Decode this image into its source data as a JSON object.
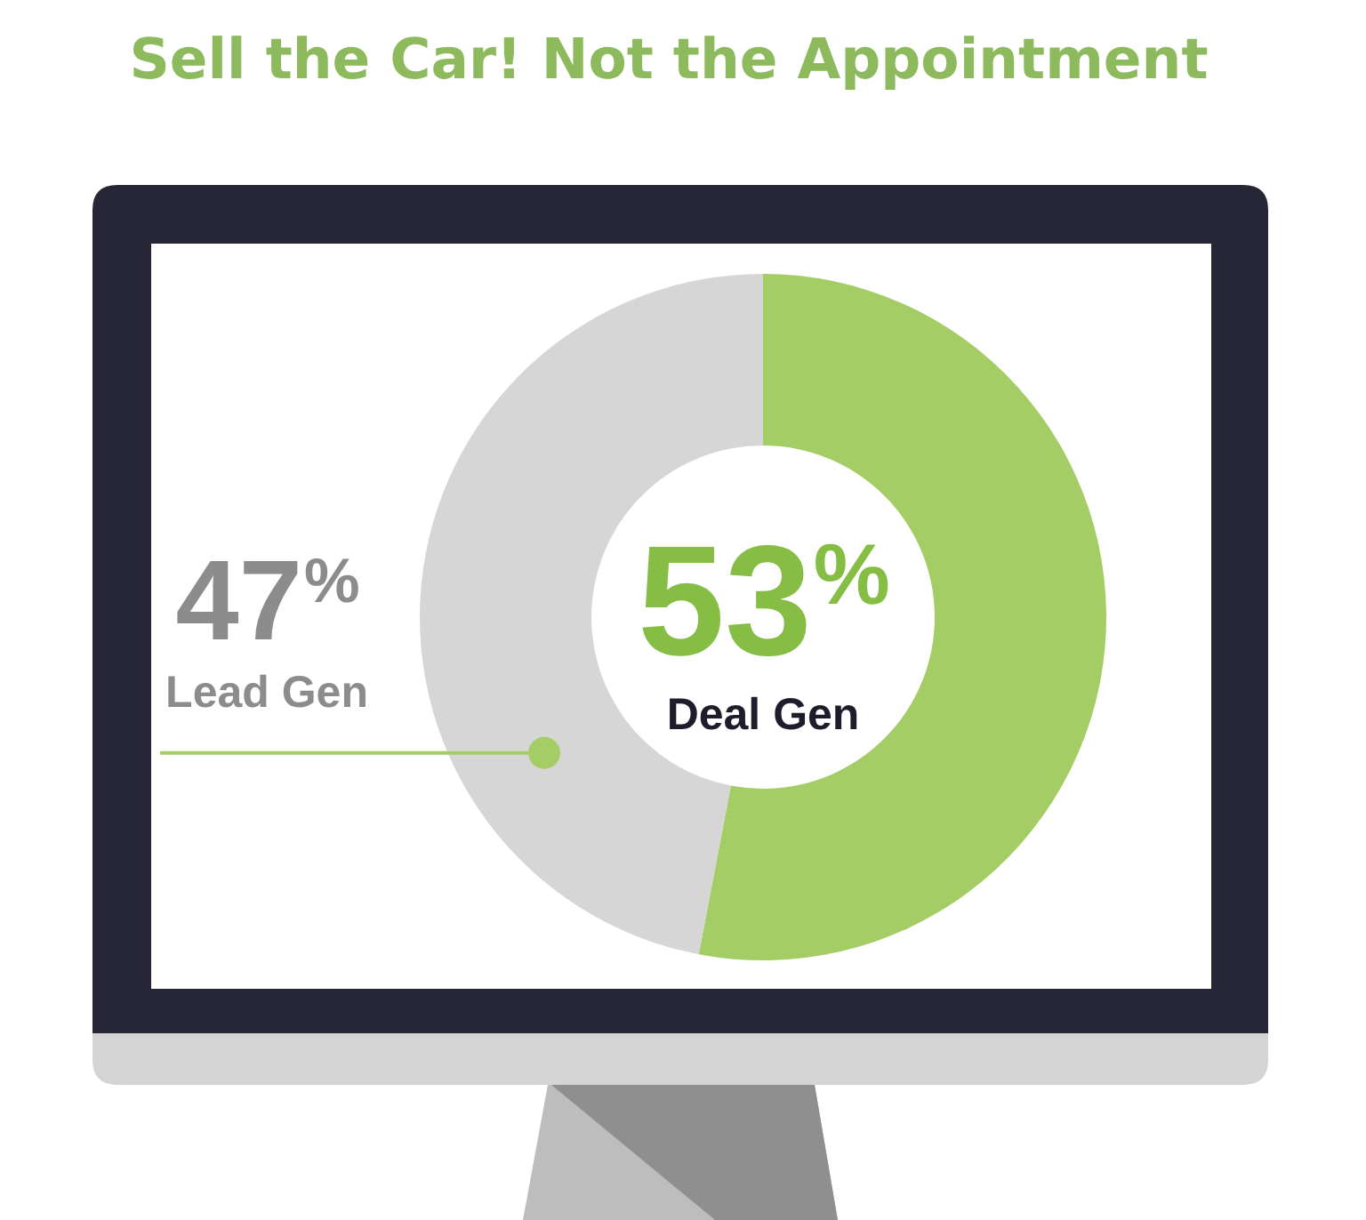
{
  "chart_data": {
    "type": "donut",
    "title": "Sell the Car! Not the Appointment",
    "categories": [
      "Deal Gen",
      "Lead Gen"
    ],
    "values": [
      53,
      47
    ],
    "colors": [
      "#a5cd65",
      "#d6d6d6"
    ],
    "value_labels": [
      "53%",
      "47%"
    ],
    "legend": false
  }
}
